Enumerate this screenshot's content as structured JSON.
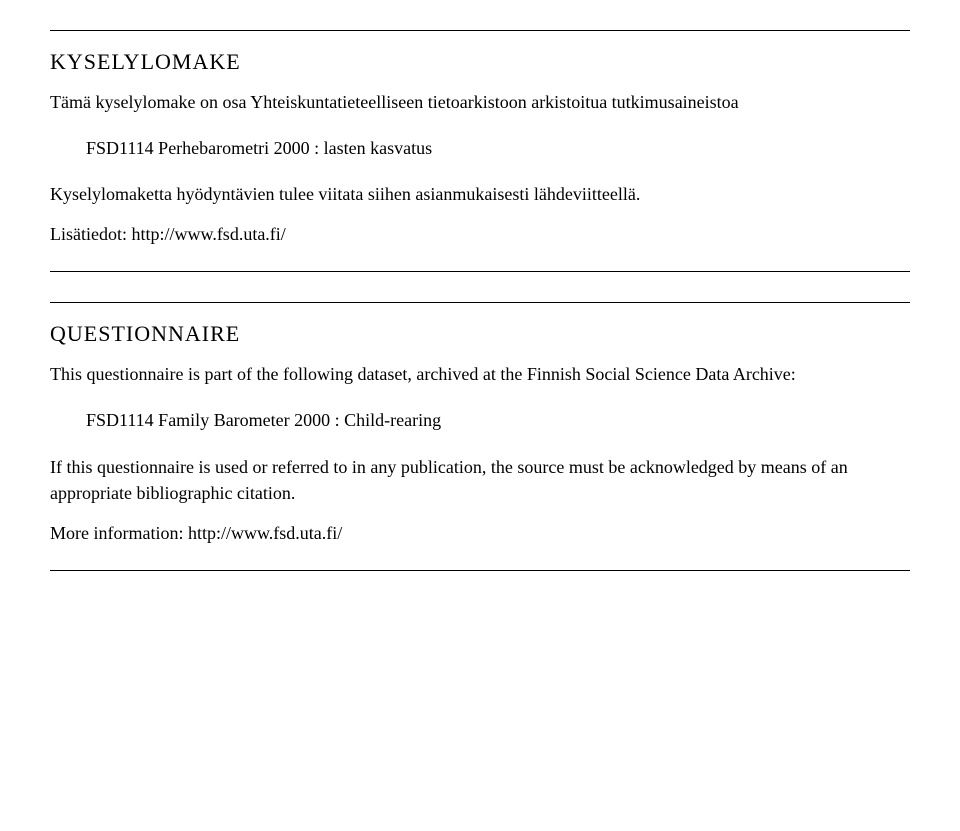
{
  "section1": {
    "heading": "KYSELYLOMAKE",
    "intro": "Tämä kyselylomake on osa Yhteiskuntatieteelliseen tietoarkistoon arkistoitua tutkimusaineistoa",
    "dataset": "FSD1114 Perhebarometri 2000 : lasten kasvatus",
    "cite": "Kyselylomaketta hyödyntävien tulee viitata siihen asianmukaisesti lähdeviitteellä.",
    "moreinfo": "Lisätiedot: http://www.fsd.uta.fi/"
  },
  "section2": {
    "heading": "QUESTIONNAIRE",
    "intro": "This questionnaire is part of the following dataset, archived at the Finnish Social Science Data Archive:",
    "dataset": "FSD1114 Family Barometer 2000 : Child-rearing",
    "cite": "If this questionnaire is used or referred to in any publication, the source must be acknowledged by means of an appropriate bibliographic citation.",
    "moreinfo": "More information: http://www.fsd.uta.fi/"
  }
}
